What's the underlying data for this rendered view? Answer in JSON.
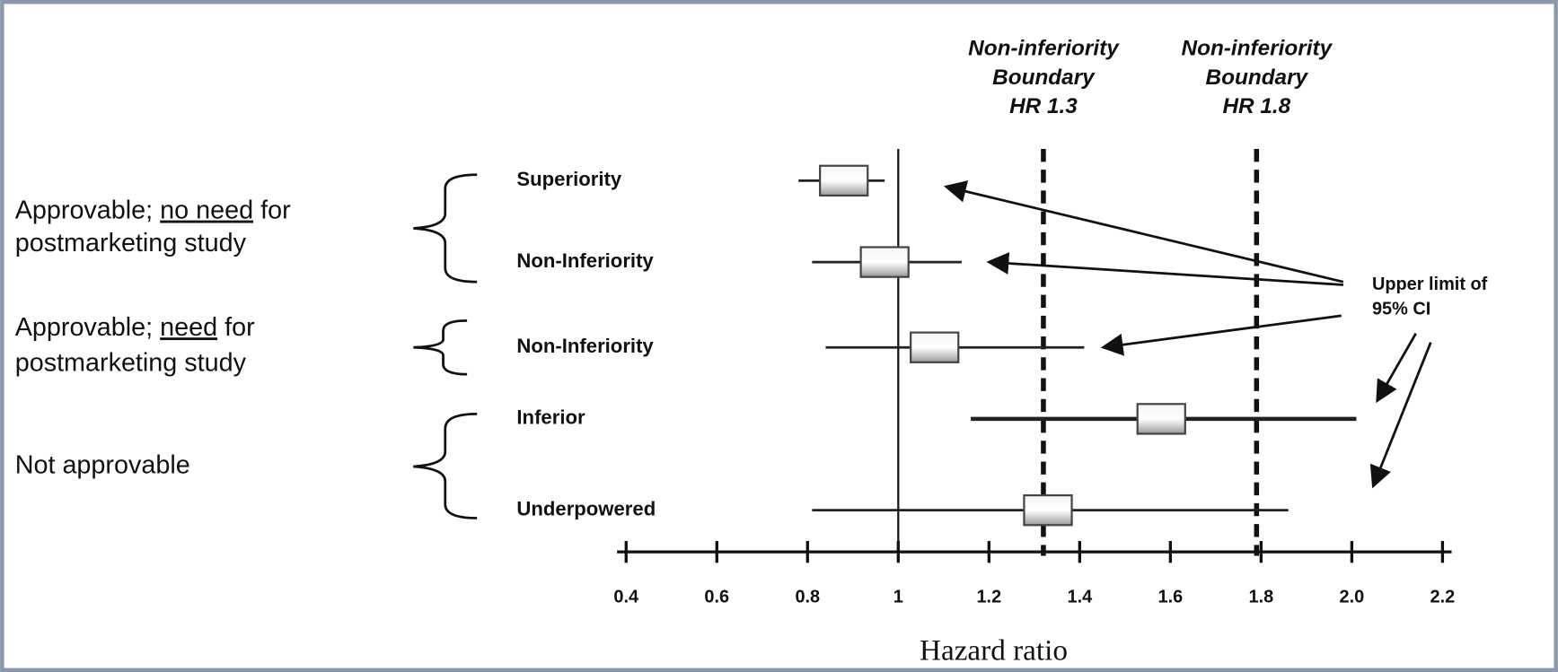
{
  "chart_data": {
    "type": "forest",
    "categories": [
      "Superiority",
      "Non-Inferiority",
      "Non-Inferiority",
      "Inferior",
      "Underpowered"
    ],
    "estimate": [
      0.88,
      0.97,
      1.08,
      1.58,
      1.33
    ],
    "lower": [
      0.78,
      0.81,
      0.84,
      1.16,
      0.81
    ],
    "upper": [
      0.97,
      1.14,
      1.41,
      2.01,
      1.86
    ],
    "reference_line": 1,
    "boundaries": [
      {
        "value": 1.32,
        "label": [
          "Non-inferiority",
          "Boundary",
          "HR 1.3"
        ]
      },
      {
        "value": 1.79,
        "label": [
          "Non-inferiority",
          "Boundary",
          "HR 1.8"
        ]
      }
    ],
    "xlim": [
      0.38,
      2.22
    ],
    "xticks": [
      0.4,
      0.6,
      0.8,
      1,
      1.2,
      1.4,
      1.6,
      1.8,
      {
        "value": 2,
        "label": "2.0"
      },
      2.2
    ],
    "xlabel": "Hazard ratio",
    "groups": [
      {
        "label": [
          "Approvable;",
          "no need",
          "for",
          "postmarketing study"
        ]
      },
      {
        "label": [
          "Approvable;",
          "need",
          "for",
          "postmarketing study"
        ]
      },
      {
        "label": [
          "Not approvable"
        ]
      }
    ],
    "annotation": [
      "Upper limit of",
      "95% CI"
    ]
  }
}
